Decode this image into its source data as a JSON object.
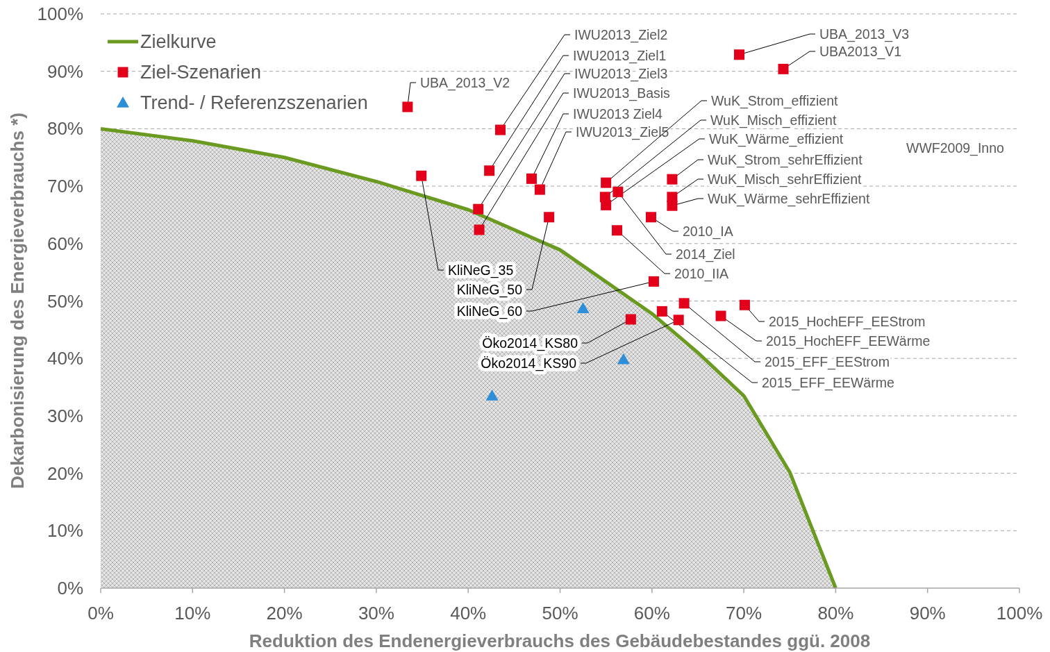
{
  "chart_data": {
    "type": "scatter",
    "xlabel": "Reduktion des Endenergieverbrauchs des Gebäudebestandes ggü. 2008",
    "ylabel": "Dekarbonisierung des Energieverbrauchs *)",
    "xlim": [
      0,
      100
    ],
    "ylim": [
      0,
      100
    ],
    "xticks": [
      {
        "value": 0,
        "label": "0%"
      },
      {
        "value": 10,
        "label": "10%"
      },
      {
        "value": 20,
        "label": "20%"
      },
      {
        "value": 30,
        "label": "30%"
      },
      {
        "value": 40,
        "label": "40%"
      },
      {
        "value": 50,
        "label": "50%"
      },
      {
        "value": 60,
        "label": "60%"
      },
      {
        "value": 70,
        "label": "70%"
      },
      {
        "value": 80,
        "label": "80%"
      },
      {
        "value": 90,
        "label": "90%"
      },
      {
        "value": 100,
        "label": "100%"
      }
    ],
    "yticks": [
      {
        "value": 0,
        "label": "0%"
      },
      {
        "value": 10,
        "label": "10%"
      },
      {
        "value": 20,
        "label": "20%"
      },
      {
        "value": 30,
        "label": "30%"
      },
      {
        "value": 40,
        "label": "40%"
      },
      {
        "value": 50,
        "label": "50%"
      },
      {
        "value": 60,
        "label": "60%"
      },
      {
        "value": 70,
        "label": "70%"
      },
      {
        "value": 80,
        "label": "80%"
      },
      {
        "value": 90,
        "label": "90%"
      },
      {
        "value": 100,
        "label": "100%"
      }
    ],
    "grid": "y",
    "legend": "top left",
    "series": [
      {
        "name": "Zielkurve",
        "type": "area",
        "color": "#6a9a1f",
        "x": [
          0,
          10,
          20,
          30,
          40,
          50,
          60,
          65,
          70,
          75,
          80
        ],
        "values": [
          80,
          77.9,
          75,
          70.8,
          65.9,
          58.9,
          47.8,
          41,
          33.5,
          20.2,
          0
        ]
      },
      {
        "name": "Ziel-Szenarien",
        "color": "#e3001b",
        "marker": "square",
        "x": [
          33.4,
          69.5,
          74.3,
          43.5,
          42.3,
          41.1,
          41.2,
          46.9,
          47.8,
          34.9,
          48.8,
          60.2,
          55.0,
          54.9,
          55.0,
          56.3,
          62.2,
          62.2,
          62.2,
          59.9,
          56.2,
          57.7,
          62.9,
          70.1,
          67.5,
          63.5,
          61.1
        ],
        "values": [
          83.8,
          92.9,
          90.4,
          79.8,
          72.7,
          66.0,
          62.4,
          71.3,
          69.4,
          71.8,
          64.6,
          53.4,
          70.6,
          68.1,
          66.7,
          69.0,
          71.2,
          68.1,
          66.6,
          64.6,
          62.3,
          46.8,
          46.7,
          49.3,
          47.4,
          49.6,
          48.2
        ]
      },
      {
        "name": "Trend- / Referenzszenarien",
        "color": "#2e8fd8",
        "marker": "triangle",
        "x": [
          52.5,
          56.9,
          42.6
        ],
        "values": [
          48.7,
          39.8,
          33.5
        ]
      }
    ],
    "annotations": [
      {
        "text": "UBA_2013_V2",
        "x": 33.4,
        "y": 83.8
      },
      {
        "text": "UBA_2013_V3",
        "x": 69.5,
        "y": 92.9
      },
      {
        "text": "UBA2013_V1",
        "x": 74.3,
        "y": 90.4
      },
      {
        "text": "IWU2013_Ziel2",
        "x": 43.5,
        "y": 79.8
      },
      {
        "text": "IWU2013_Ziel1",
        "x": 42.3,
        "y": 72.7
      },
      {
        "text": "IWU2013_Ziel3",
        "x": 41.1,
        "y": 66.0
      },
      {
        "text": "IWU2013_Basis",
        "x": 41.2,
        "y": 62.4
      },
      {
        "text": "IWU2013  Ziel4",
        "x": 46.9,
        "y": 71.3
      },
      {
        "text": "IWU2013_Ziel5",
        "x": 47.8,
        "y": 69.4
      },
      {
        "text": "WuK_Strom_effizient",
        "x": 55.0,
        "y": 70.6
      },
      {
        "text": "WuK_Misch_effizient",
        "x": 54.9,
        "y": 68.1
      },
      {
        "text": "WuK_Wärme_effizient",
        "x": 55.0,
        "y": 66.7
      },
      {
        "text": "WuK_Strom_sehrEffizient",
        "x": 62.2,
        "y": 71.2
      },
      {
        "text": "WuK_Misch_sehrEffizient",
        "x": 62.2,
        "y": 68.1
      },
      {
        "text": "WuK_Wärme_sehrEffizient",
        "x": 62.2,
        "y": 66.6
      },
      "WWF2009_Inno",
      {
        "text": "2010_IA",
        "x": 59.9,
        "y": 64.6
      },
      {
        "text": "2014_Ziel",
        "x": 56.3,
        "y": 69.0
      },
      {
        "text": "2010_IIA",
        "x": 56.2,
        "y": 62.3
      },
      {
        "text": "KliNeG_35",
        "x": 34.9,
        "y": 71.8
      },
      {
        "text": "KliNeG_50",
        "x": 48.8,
        "y": 64.6
      },
      {
        "text": "KliNeG_60",
        "x": 60.2,
        "y": 53.4
      },
      {
        "text": "Öko2014_KS80",
        "x": 57.7,
        "y": 46.8
      },
      {
        "text": "Öko2014_KS90",
        "x": 62.9,
        "y": 46.7
      },
      {
        "text": "2015_HochEFF_EEStrom",
        "x": 70.1,
        "y": 49.3
      },
      {
        "text": "2015_HochEFF_EEWärme",
        "x": 67.5,
        "y": 47.4
      },
      {
        "text": "2015_EFF_EEStrom",
        "x": 63.5,
        "y": 49.6
      },
      {
        "text": "2015_EFF_EEWärme",
        "x": 61.1,
        "y": 48.2
      }
    ]
  }
}
